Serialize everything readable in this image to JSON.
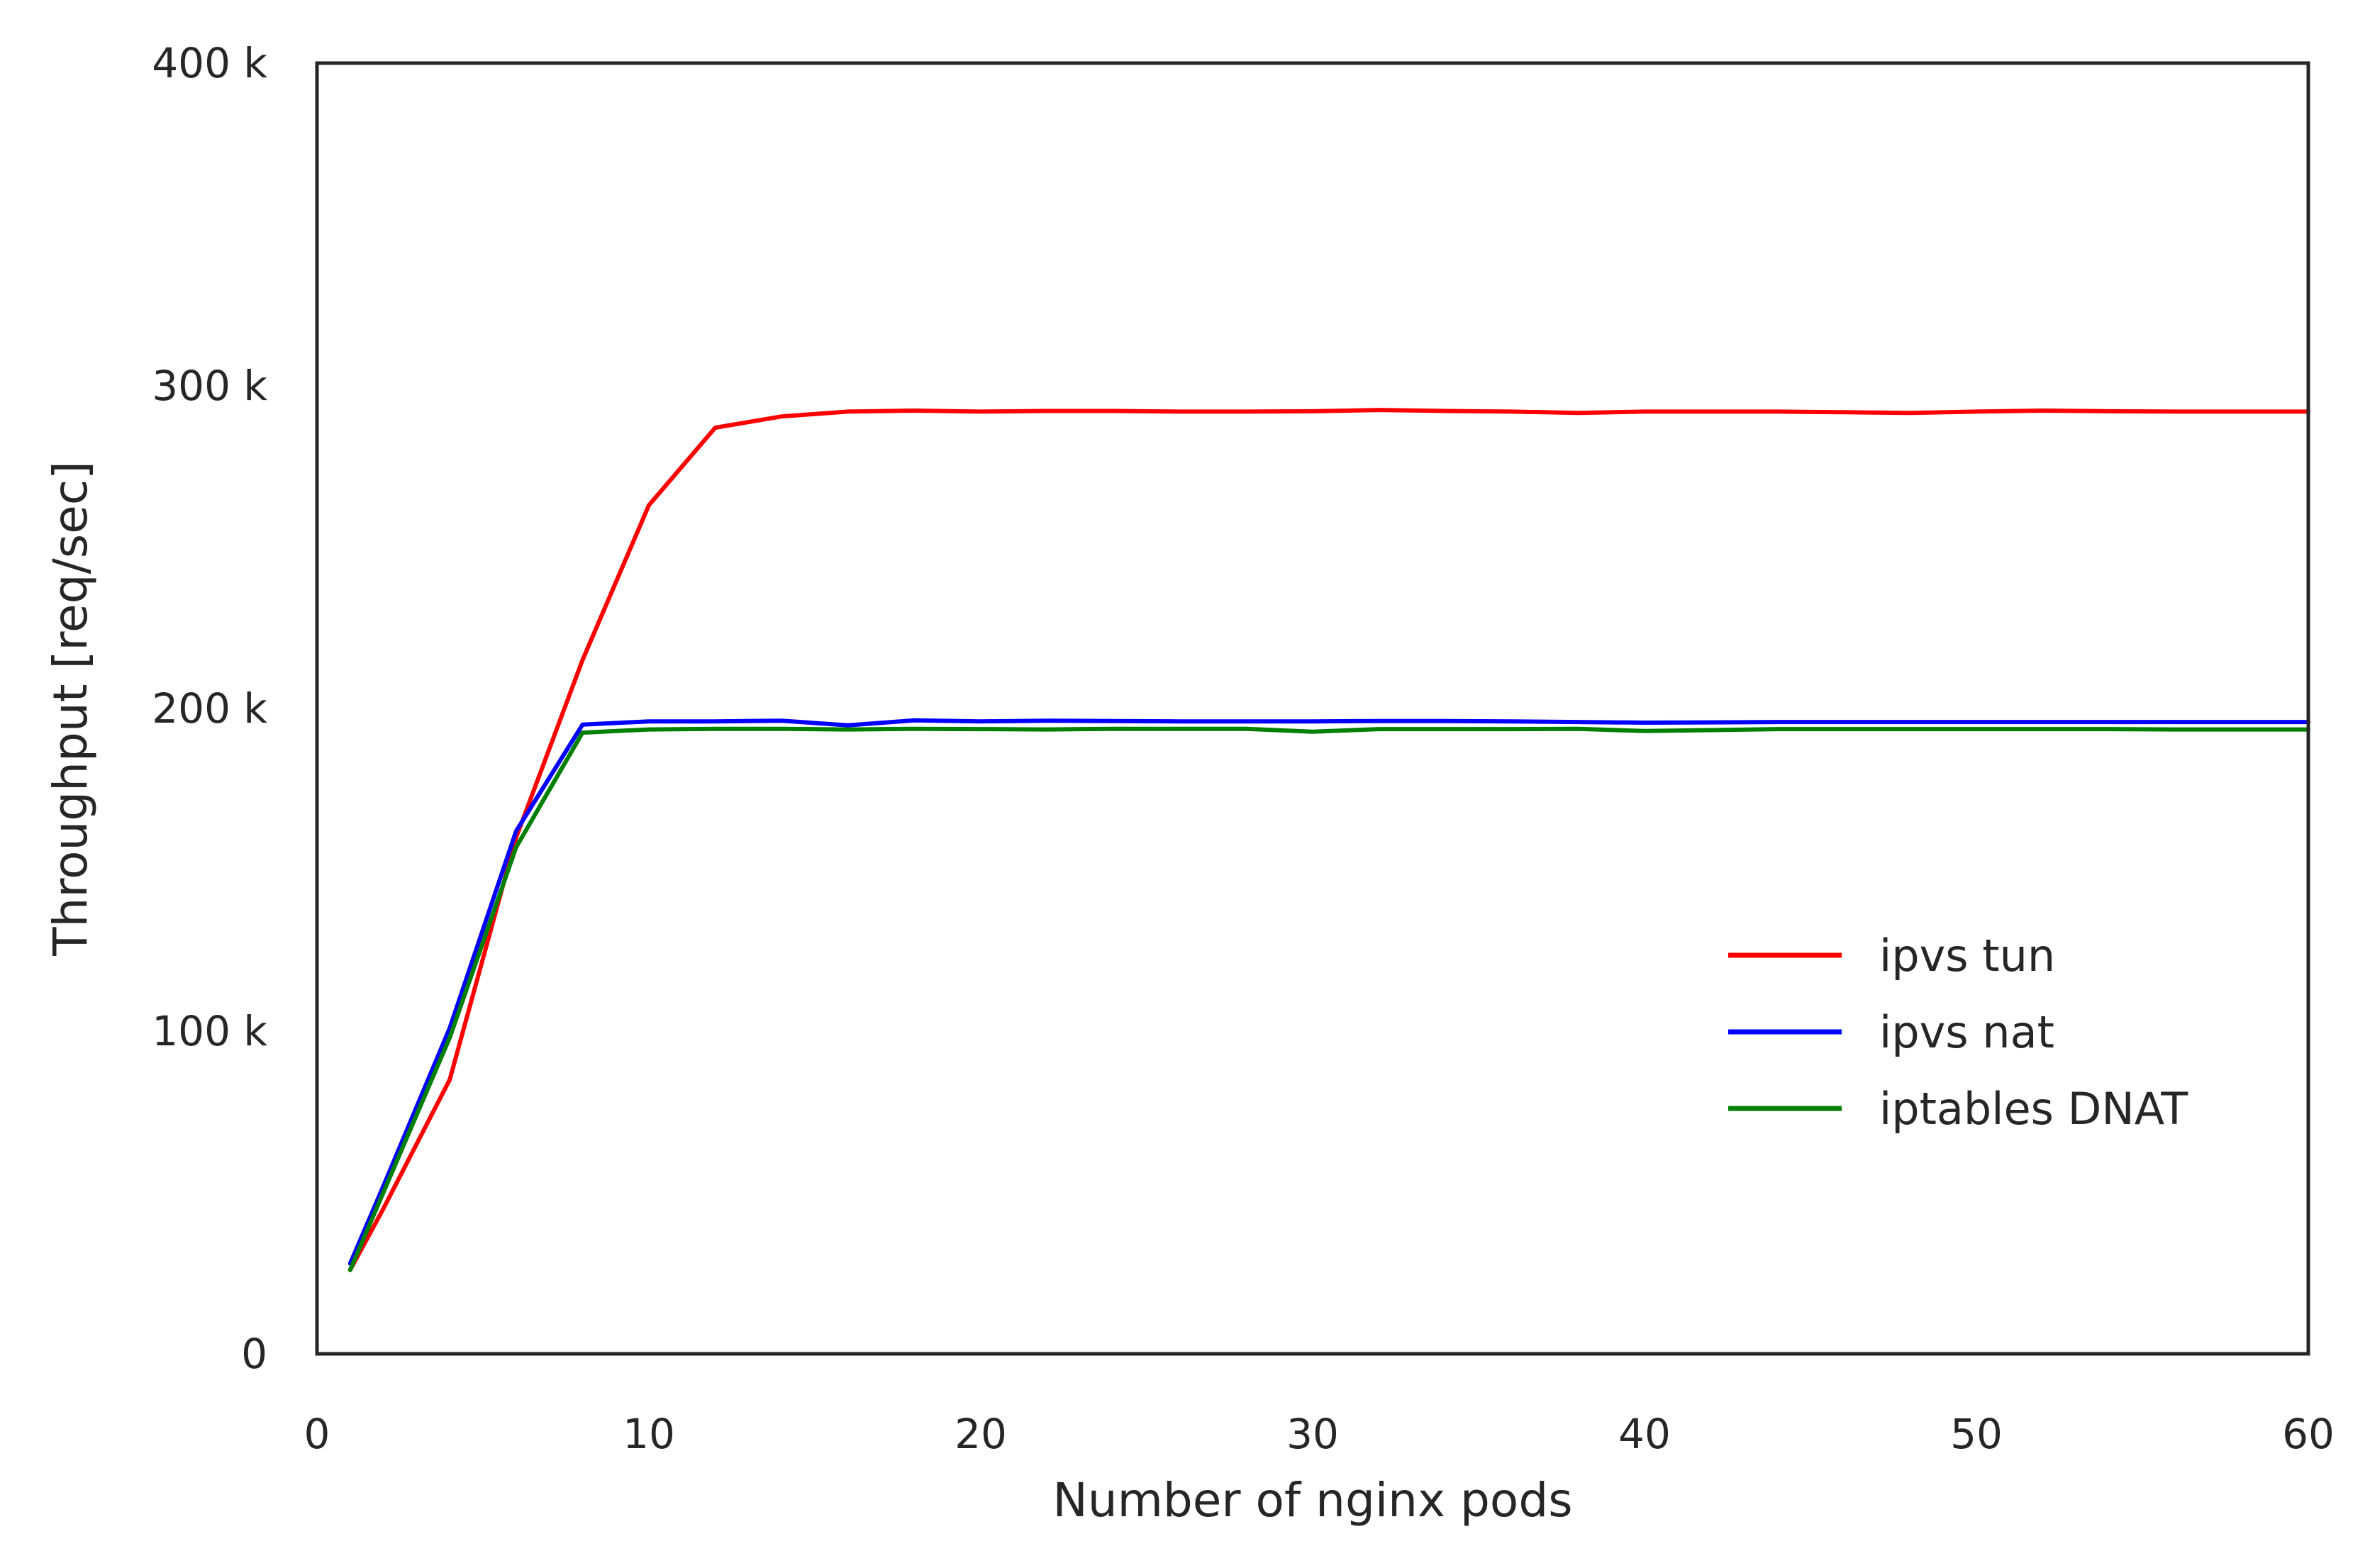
{
  "chart_data": {
    "type": "line",
    "xlabel": "Number of nginx pods",
    "ylabel": "Throughput [req/sec]",
    "xlim": [
      0,
      60
    ],
    "ylim": [
      0,
      400000
    ],
    "xticks": [
      0,
      10,
      20,
      30,
      40,
      50,
      60
    ],
    "xtick_labels": [
      "0",
      "10",
      "20",
      "30",
      "40",
      "50",
      "60"
    ],
    "yticks": [
      0,
      100000,
      200000,
      300000,
      400000
    ],
    "ytick_labels": [
      "0",
      "100 k",
      "200 k",
      "300 k",
      "400 k"
    ],
    "grid": false,
    "legend_position": "center-right",
    "series": [
      {
        "name": "ipvs tun",
        "color": "#ff0000",
        "x": [
          1,
          2,
          4,
          6,
          8,
          10,
          12,
          14,
          16,
          18,
          20,
          22,
          24,
          26,
          28,
          30,
          32,
          34,
          36,
          38,
          40,
          42,
          44,
          46,
          48,
          50,
          52,
          54,
          56,
          58,
          60
        ],
        "y": [
          26000,
          45000,
          85000,
          160000,
          215000,
          263000,
          287000,
          290500,
          292000,
          292300,
          292000,
          292200,
          292200,
          292000,
          292000,
          292100,
          292500,
          292200,
          292000,
          291600,
          292000,
          292000,
          292000,
          291800,
          291600,
          292000,
          292300,
          292100,
          292000,
          292000,
          292000
        ]
      },
      {
        "name": "ipvs nat",
        "color": "#0000ff",
        "x": [
          1,
          2,
          4,
          6,
          8,
          10,
          12,
          14,
          16,
          18,
          20,
          22,
          24,
          26,
          28,
          30,
          32,
          34,
          36,
          38,
          40,
          42,
          44,
          46,
          48,
          50,
          52,
          54,
          56,
          58,
          60
        ],
        "y": [
          28000,
          52000,
          101000,
          162000,
          195000,
          196000,
          196000,
          196200,
          194800,
          196300,
          196000,
          196200,
          196100,
          196000,
          196000,
          196000,
          196100,
          196100,
          196000,
          195800,
          195600,
          195700,
          195800,
          195800,
          195800,
          195800,
          195800,
          195800,
          195800,
          195800,
          195800
        ]
      },
      {
        "name": "iptables DNAT",
        "color": "#008000",
        "x": [
          1,
          2,
          4,
          6,
          8,
          10,
          12,
          14,
          16,
          18,
          20,
          22,
          24,
          26,
          28,
          30,
          32,
          34,
          36,
          38,
          40,
          42,
          44,
          46,
          48,
          50,
          52,
          54,
          56,
          58,
          60
        ],
        "y": [
          26000,
          50000,
          98000,
          157000,
          192500,
          193500,
          193700,
          193700,
          193500,
          193700,
          193600,
          193500,
          193700,
          193700,
          193700,
          192800,
          193600,
          193600,
          193600,
          193700,
          193000,
          193300,
          193600,
          193600,
          193600,
          193600,
          193600,
          193600,
          193500,
          193500,
          193500
        ]
      }
    ]
  }
}
